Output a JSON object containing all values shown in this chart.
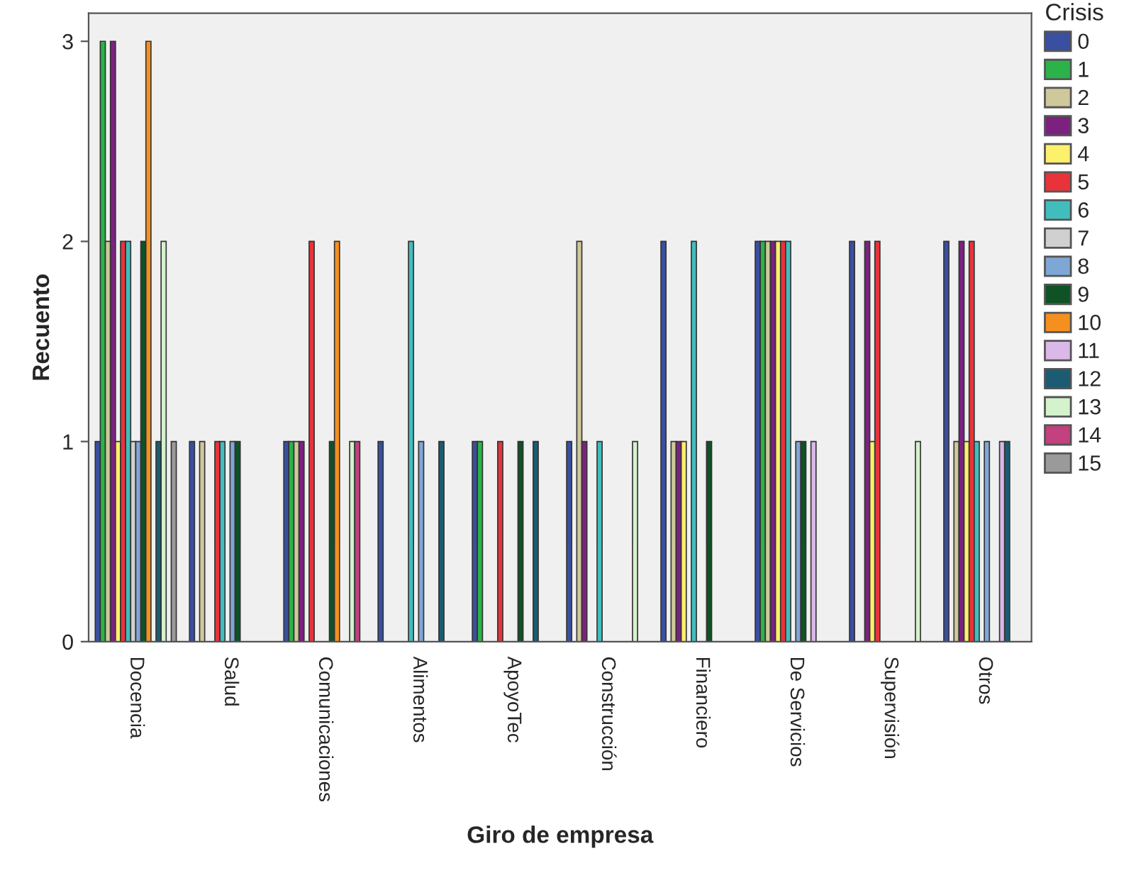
{
  "chart_data": {
    "type": "bar",
    "xlabel": "Giro de empresa",
    "ylabel": "Recuento",
    "legend_title": "Crisis",
    "legend": "right",
    "categories": [
      "Docencia",
      "Salud",
      "Comunicaciones",
      "Alimentos",
      "ApoyoTec",
      "Construcción",
      "Financiero",
      "De Servicios",
      "Supervisión",
      "Otros"
    ],
    "ylim": [
      0,
      3.14
    ],
    "yticks": [
      0,
      1,
      2,
      3
    ],
    "grid": false,
    "series": [
      {
        "name": "0",
        "color": "#3a4fa0",
        "values": [
          1,
          1,
          1,
          1,
          1,
          1,
          2,
          2,
          2,
          2
        ]
      },
      {
        "name": "1",
        "color": "#2bb34a",
        "values": [
          3,
          null,
          1,
          null,
          1,
          null,
          null,
          2,
          null,
          null
        ]
      },
      {
        "name": "2",
        "color": "#cfc89a",
        "values": [
          2,
          1,
          1,
          null,
          null,
          2,
          1,
          2,
          null,
          1
        ]
      },
      {
        "name": "3",
        "color": "#7b2281",
        "values": [
          3,
          null,
          1,
          null,
          null,
          1,
          1,
          2,
          2,
          2
        ]
      },
      {
        "name": "4",
        "color": "#fdf06a",
        "values": [
          1,
          null,
          null,
          null,
          null,
          null,
          1,
          2,
          1,
          1
        ]
      },
      {
        "name": "5",
        "color": "#e8333b",
        "values": [
          2,
          1,
          2,
          null,
          1,
          null,
          null,
          2,
          2,
          2
        ]
      },
      {
        "name": "6",
        "color": "#42bdbd",
        "values": [
          2,
          1,
          null,
          2,
          null,
          1,
          2,
          2,
          null,
          1
        ]
      },
      {
        "name": "7",
        "color": "#d0d0d0",
        "values": [
          1,
          null,
          null,
          null,
          null,
          null,
          null,
          null,
          null,
          null
        ]
      },
      {
        "name": "8",
        "color": "#7fa7d6",
        "values": [
          1,
          1,
          null,
          1,
          null,
          null,
          null,
          1,
          null,
          1
        ]
      },
      {
        "name": "9",
        "color": "#0e5226",
        "values": [
          2,
          1,
          1,
          null,
          1,
          null,
          1,
          1,
          null,
          null
        ]
      },
      {
        "name": "10",
        "color": "#f4901f",
        "values": [
          3,
          null,
          2,
          null,
          null,
          null,
          null,
          null,
          null,
          null
        ]
      },
      {
        "name": "11",
        "color": "#dab8e8",
        "values": [
          null,
          null,
          null,
          null,
          null,
          null,
          null,
          1,
          null,
          1
        ]
      },
      {
        "name": "12",
        "color": "#1c5b72",
        "values": [
          1,
          null,
          null,
          1,
          1,
          null,
          null,
          null,
          null,
          1
        ]
      },
      {
        "name": "13",
        "color": "#d4f2cc",
        "values": [
          2,
          null,
          1,
          null,
          null,
          1,
          null,
          null,
          1,
          null
        ]
      },
      {
        "name": "14",
        "color": "#c2417f",
        "values": [
          null,
          null,
          1,
          null,
          null,
          null,
          null,
          null,
          null,
          null
        ]
      },
      {
        "name": "15",
        "color": "#9a9a9a",
        "values": [
          1,
          null,
          null,
          null,
          null,
          null,
          null,
          null,
          null,
          null
        ]
      }
    ]
  }
}
